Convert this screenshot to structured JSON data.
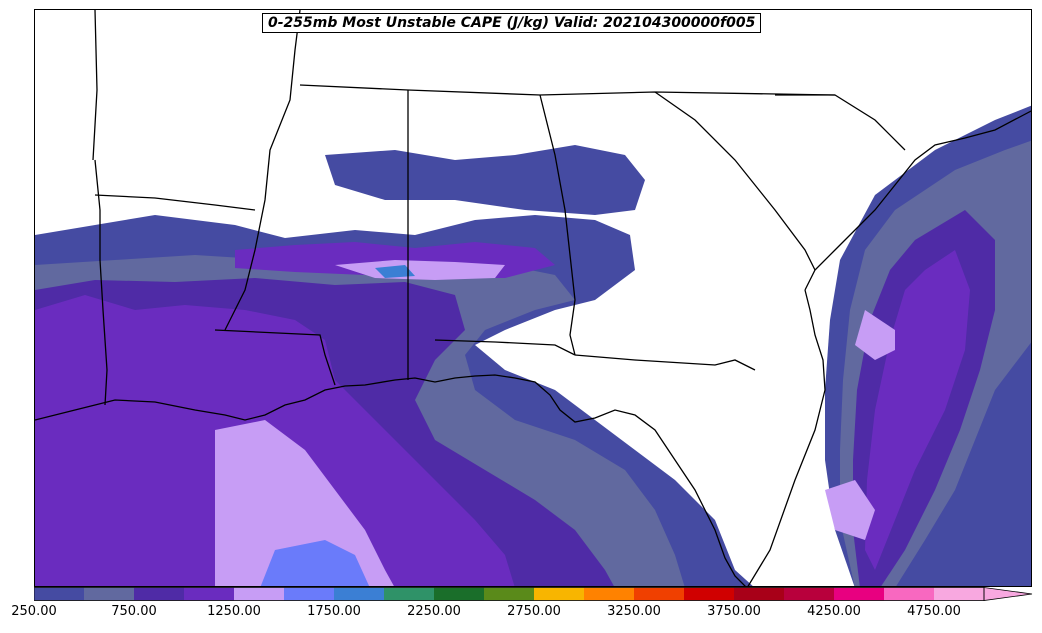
{
  "title": "0-255mb Most Unstable CAPE (J/kg) Valid: 202104300000f005",
  "legend": {
    "levels": [
      250,
      500,
      750,
      1000,
      1250,
      1500,
      1750,
      2000,
      2250,
      2500,
      2750,
      3000,
      3250,
      3500,
      3750,
      4000,
      4250,
      4500,
      4750,
      5000
    ],
    "colors": [
      "#454ba2",
      "#61699f",
      "#4f2ba6",
      "#6a2cbf",
      "#c79df5",
      "#6a7bfa",
      "#3b7fd4",
      "#2f9268",
      "#1a6e2a",
      "#5a8a1a",
      "#f8b500",
      "#ff8200",
      "#f04000",
      "#d00000",
      "#a80018",
      "#b8003c",
      "#e80080",
      "#f868c0",
      "#f8a8e0"
    ],
    "tick_labels": [
      "250.00",
      "750.00",
      "1250.00",
      "1750.00",
      "2250.00",
      "2750.00",
      "3250.00",
      "3750.00",
      "4250.00",
      "4750.00"
    ],
    "extend": "max"
  },
  "map": {
    "region": "Southeastern United States and northern Gulf of Mexico",
    "borders": "state and coastline outlines in black",
    "cape_colors": {
      "c250": "#454ba2",
      "c500": "#61699f",
      "c750": "#4f2ba6",
      "c1000": "#6a2cbf",
      "c1250": "#c79df5",
      "c1500": "#6a7bfa",
      "c1750": "#3b7fd4"
    }
  }
}
